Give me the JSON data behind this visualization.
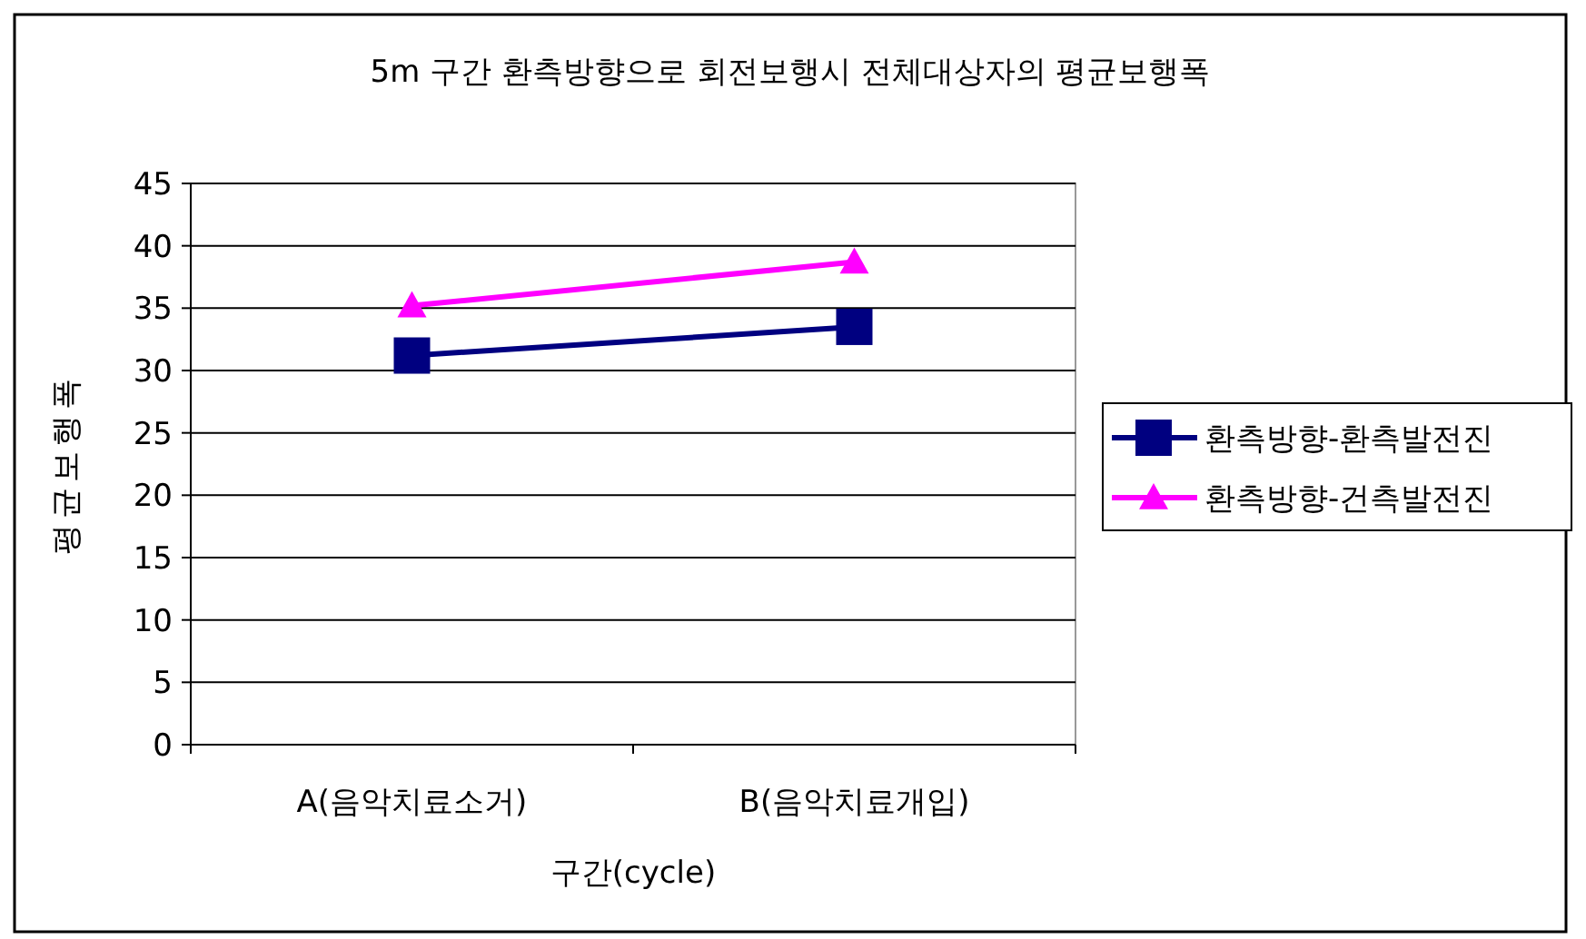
{
  "chart_data": {
    "type": "line",
    "title": "5m 구간 환측방향으로 회전보행시 전체대상자의 평균보행폭",
    "xlabel": "구간(cycle)",
    "ylabel": "평균보행폭",
    "categories": [
      "A(음악치료소거)",
      "B(음악치료개입)"
    ],
    "series": [
      {
        "name": "환측방향-환측발전진",
        "color": "#000080",
        "values": [
          31.2,
          33.5
        ],
        "marker": "square"
      },
      {
        "name": "환측방향-건측발전진",
        "color": "#ff00ff",
        "values": [
          35.2,
          38.7
        ],
        "marker": "triangle"
      }
    ],
    "ylim": [
      0,
      45
    ],
    "yticks": [
      0,
      5,
      10,
      15,
      20,
      25,
      30,
      35,
      40,
      45
    ],
    "grid": "y",
    "legend": "right",
    "line_style": "solid"
  }
}
